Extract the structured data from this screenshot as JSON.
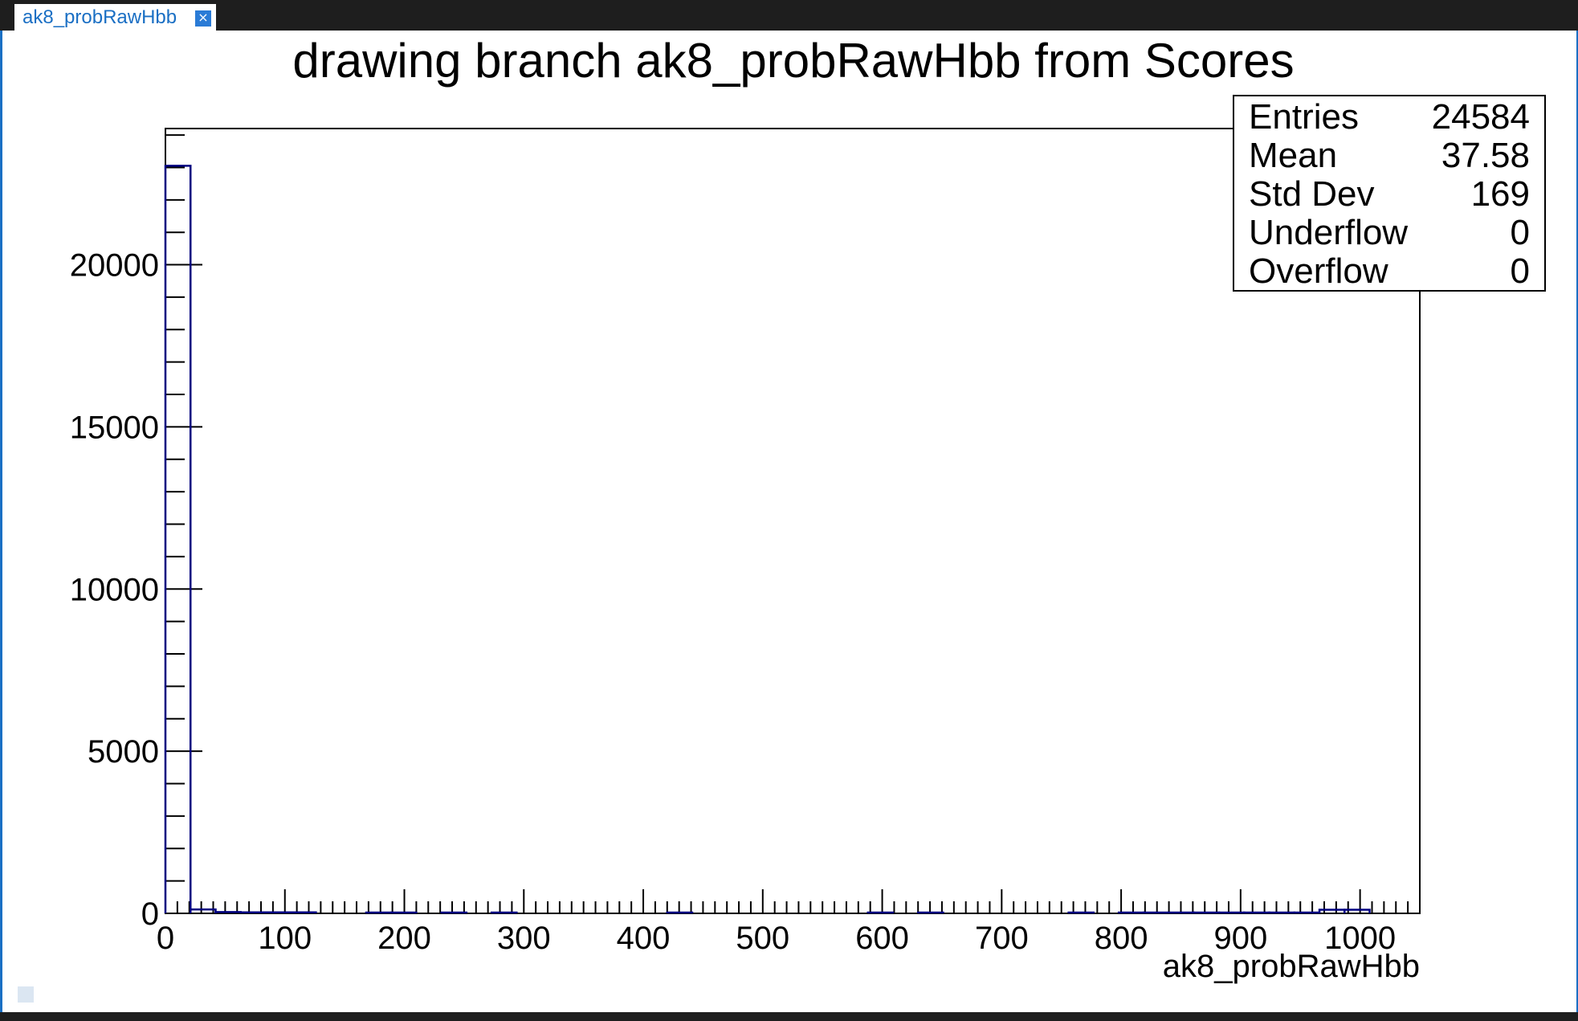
{
  "window": {
    "tab_label": "ak8_probRawHbb",
    "close_glyph": "×"
  },
  "stats": {
    "rows": [
      {
        "label": "Entries",
        "value": "24584"
      },
      {
        "label": "Mean",
        "value": "37.58"
      },
      {
        "label": "Std Dev",
        "value": "169"
      },
      {
        "label": "Underflow",
        "value": "0"
      },
      {
        "label": "Overflow",
        "value": "0"
      }
    ]
  },
  "colors": {
    "histogram_line": "#000080",
    "tab_text": "#1a6fc4",
    "frame": "#1a6fc4"
  },
  "chart_data": {
    "type": "bar",
    "title": "drawing branch ak8_probRawHbb from Scores",
    "xlabel": "ak8_probRawHbb",
    "ylabel": "",
    "xlim": [
      0,
      1050
    ],
    "ylim": [
      0,
      24200
    ],
    "bin_width": 21,
    "x_ticks": [
      0,
      100,
      200,
      300,
      400,
      500,
      600,
      700,
      800,
      900,
      1000
    ],
    "y_ticks": [
      0,
      5000,
      10000,
      15000,
      20000
    ],
    "grid": false,
    "legend": "none",
    "bins": [
      {
        "x_low": 0,
        "count": 23050
      },
      {
        "x_low": 21,
        "count": 120
      },
      {
        "x_low": 42,
        "count": 40
      },
      {
        "x_low": 63,
        "count": 30
      },
      {
        "x_low": 84,
        "count": 30
      },
      {
        "x_low": 105,
        "count": 30
      },
      {
        "x_low": 168,
        "count": 25
      },
      {
        "x_low": 189,
        "count": 25
      },
      {
        "x_low": 231,
        "count": 25
      },
      {
        "x_low": 273,
        "count": 25
      },
      {
        "x_low": 420,
        "count": 25
      },
      {
        "x_low": 588,
        "count": 25
      },
      {
        "x_low": 630,
        "count": 25
      },
      {
        "x_low": 756,
        "count": 25
      },
      {
        "x_low": 798,
        "count": 25
      },
      {
        "x_low": 819,
        "count": 25
      },
      {
        "x_low": 840,
        "count": 25
      },
      {
        "x_low": 861,
        "count": 25
      },
      {
        "x_low": 882,
        "count": 25
      },
      {
        "x_low": 903,
        "count": 25
      },
      {
        "x_low": 924,
        "count": 25
      },
      {
        "x_low": 945,
        "count": 25
      },
      {
        "x_low": 966,
        "count": 110
      },
      {
        "x_low": 987,
        "count": 110
      }
    ]
  }
}
